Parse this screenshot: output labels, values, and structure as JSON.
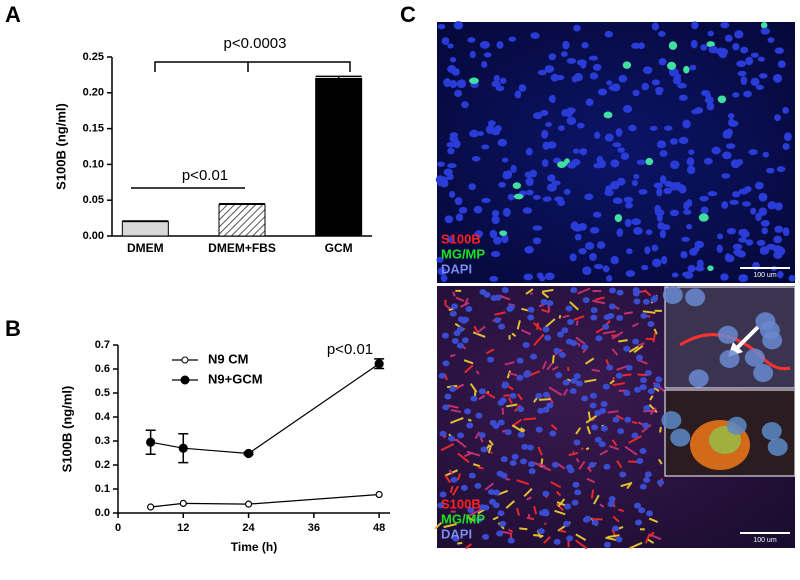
{
  "panel_labels": [
    "A",
    "B",
    "C"
  ],
  "chart_data": [
    {
      "type": "bar",
      "ylabel": "S100B (ng/ml)",
      "categories": [
        "DMEM",
        "DMEM+FBS",
        "GCM"
      ],
      "values": [
        0.02,
        0.044,
        0.22
      ],
      "errors": [
        0.001,
        0.001,
        0.003
      ],
      "colors": [
        "#d9d9d9",
        "#ffffff",
        "#000000"
      ],
      "hatch": [
        false,
        true,
        false
      ],
      "ylim": [
        0,
        0.25
      ],
      "yticks": [
        {
          "value": 0,
          "label": "0.00"
        },
        0.05,
        {
          "value": 0.1,
          "label": "0.10"
        },
        0.15,
        {
          "value": 0.2,
          "label": "0.20"
        },
        0.25
      ],
      "annotations": [
        "p<0.0003",
        "p<0.01"
      ]
    },
    {
      "type": "line",
      "xlabel": "Time (h)",
      "ylabel": "S100B (ng/ml)",
      "x": [
        6,
        12,
        24,
        48
      ],
      "series": [
        {
          "name": "N9 CM",
          "color": "#000000",
          "marker": "open",
          "values": [
            0.025,
            0.04,
            0.037,
            0.077
          ]
        },
        {
          "name": "N9+GCM",
          "color": "#000000",
          "marker": "filled",
          "values": [
            0.295,
            0.27,
            0.248,
            0.622
          ],
          "errors": [
            0.05,
            0.06,
            0.005,
            0.02
          ]
        }
      ],
      "xlim": [
        0,
        50
      ],
      "xticks": [
        0,
        12,
        24,
        36,
        48
      ],
      "ylim": [
        0,
        0.7
      ],
      "yticks": [
        {
          "value": 0,
          "label": "0.0"
        },
        0.1,
        0.2,
        0.3,
        0.4,
        0.5,
        0.6,
        0.7
      ],
      "annotations": [
        "p<0.01"
      ]
    }
  ],
  "images": [
    {
      "labels": [
        "S100B",
        "MG/MP",
        "DAPI"
      ],
      "scale_bar": "100 um"
    },
    {
      "labels": [
        "S100B",
        "MG/MP",
        "DAPI"
      ],
      "scale_bar": "100 um"
    }
  ]
}
